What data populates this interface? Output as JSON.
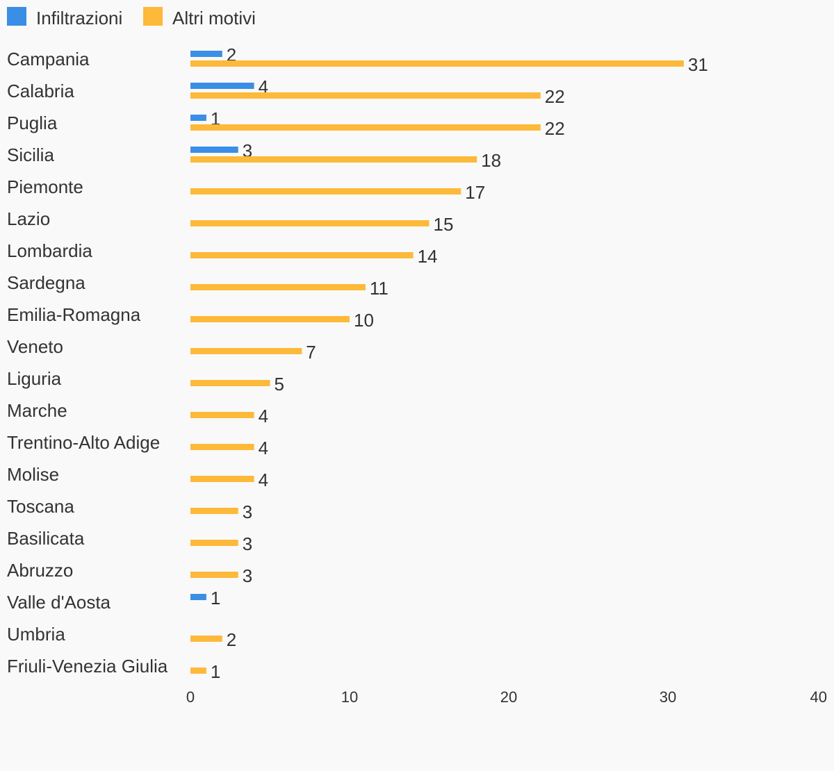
{
  "chart_data": {
    "type": "bar",
    "orientation": "horizontal",
    "categories": [
      "Campania",
      "Calabria",
      "Puglia",
      "Sicilia",
      "Piemonte",
      "Lazio",
      "Lombardia",
      "Sardegna",
      "Emilia-Romagna",
      "Veneto",
      "Liguria",
      "Marche",
      "Trentino-Alto Adige",
      "Molise",
      "Toscana",
      "Basilicata",
      "Abruzzo",
      "Valle d'Aosta",
      "Umbria",
      "Friuli-Venezia Giulia"
    ],
    "series": [
      {
        "name": "Infiltrazioni",
        "color": "#3a8ee6",
        "values": [
          2,
          4,
          1,
          3,
          null,
          null,
          null,
          null,
          null,
          null,
          null,
          null,
          null,
          null,
          null,
          null,
          null,
          1,
          null,
          null
        ]
      },
      {
        "name": "Altri motivi",
        "color": "#fdb93a",
        "values": [
          31,
          22,
          22,
          18,
          17,
          15,
          14,
          11,
          10,
          7,
          5,
          4,
          4,
          4,
          3,
          3,
          3,
          null,
          2,
          1
        ]
      }
    ],
    "xlim": [
      0,
      40
    ],
    "xticks": [
      0,
      10,
      20,
      30,
      40
    ],
    "legend_position": "top-left",
    "grid": false,
    "data_labels": true
  }
}
